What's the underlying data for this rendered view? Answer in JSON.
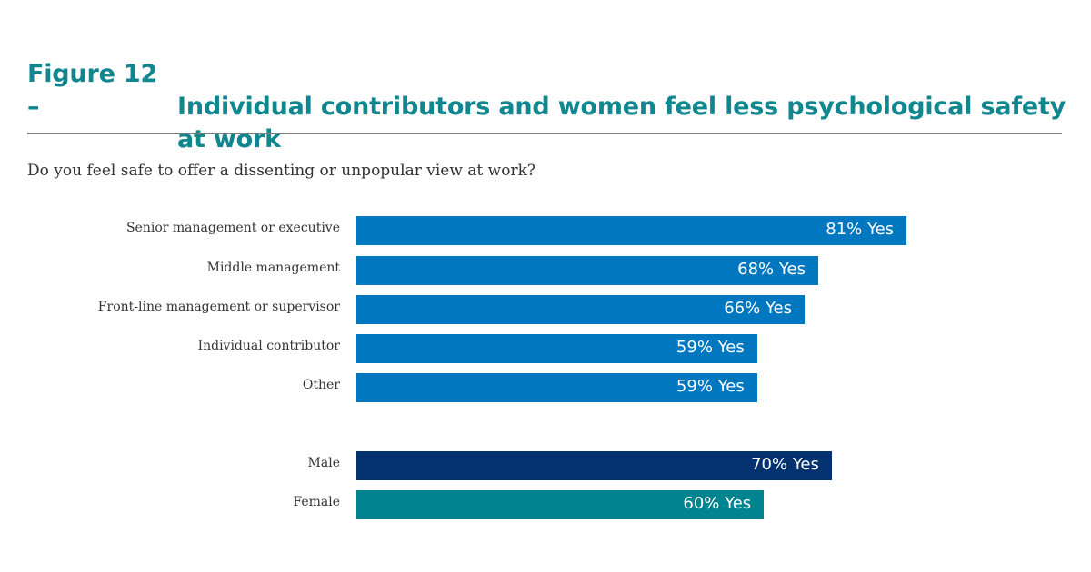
{
  "header": {
    "figure_label": "Figure 12 –",
    "title_line1": "Individual contributors and women feel less psychological safety",
    "title_line2": "at work"
  },
  "question": "Do you feel safe to offer a dissenting or unpopular view at work?",
  "colors": {
    "title": "#10868e",
    "role": "#0077be",
    "male": "#03326e",
    "female": "#00848f"
  },
  "chart_data": {
    "type": "bar",
    "orientation": "horizontal",
    "title": "Do you feel safe to offer a dissenting or unpopular view at work?",
    "xlim": [
      0,
      100
    ],
    "grid": false,
    "groups": [
      {
        "bars": [
          {
            "category": "Senior management or executive",
            "value": 81,
            "label": "81% Yes",
            "color": "#0077be"
          },
          {
            "category": "Middle management",
            "value": 68,
            "label": "68% Yes",
            "color": "#0077be"
          },
          {
            "category": "Front-line management or supervisor",
            "value": 66,
            "label": "66% Yes",
            "color": "#0077be"
          },
          {
            "category": "Individual contributor",
            "value": 59,
            "label": "59% Yes",
            "color": "#0077be"
          },
          {
            "category": "Other",
            "value": 59,
            "label": "59% Yes",
            "color": "#0077be"
          }
        ]
      },
      {
        "bars": [
          {
            "category": "Male",
            "value": 70,
            "label": "70% Yes",
            "color": "#03326e"
          },
          {
            "category": "Female",
            "value": 60,
            "label": "60% Yes",
            "color": "#00848f"
          }
        ]
      }
    ]
  }
}
